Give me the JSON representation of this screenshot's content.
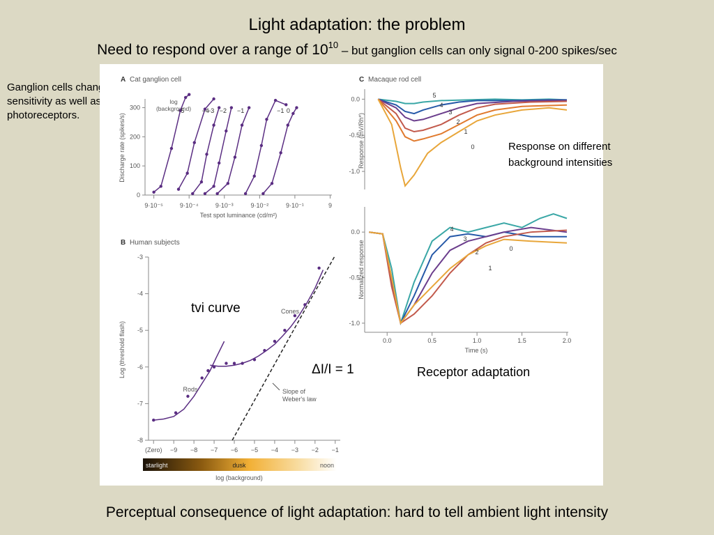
{
  "slide": {
    "title": "Light adaptation: the problem",
    "subtitle_main": "Need to respond over a range of 10",
    "subtitle_exp": "10",
    "subtitle_rest": " – but ganglion cells can only signal 0-200 spikes/sec",
    "side_note": "Ganglion cells change sensitivity as well as photoreceptors.",
    "footer": "Perceptual consequence of light adaptation: hard to tell ambient light intensity"
  },
  "annotations": {
    "tvi": "tvi curve",
    "weber": "ΔI/I = 1",
    "background": "Response on different background intensities",
    "receptor": "Receptor adaptation"
  },
  "colors": {
    "slide_bg": "#dcd9c4",
    "curve": "#5a2d82",
    "panel_bg": "#ffffff"
  },
  "chart_data": [
    {
      "panel": "A",
      "type": "line",
      "title": "Cat ganglion cell",
      "xlabel": "Test spot luminance (cd/m²)",
      "ylabel": "Discharge rate (spikes/s)",
      "x_scale": "log",
      "x_tick_labels": [
        "9·10⁻⁵",
        "9·10⁻⁴",
        "9·10⁻³",
        "9·10⁻²",
        "9·10⁻¹",
        "9"
      ],
      "x_tick_values": [
        -4.05,
        -3.05,
        -2.05,
        -1.05,
        -0.05,
        0.95
      ],
      "y_ticks": [
        0,
        100,
        200,
        300
      ],
      "ylim": [
        0,
        330
      ],
      "legend_title": "log (background)",
      "series": [
        {
          "name": "−5",
          "x": [
            -4.05,
            -3.85,
            -3.55,
            -3.3,
            -3.15,
            -3.05
          ],
          "y": [
            10,
            30,
            160,
            290,
            335,
            345
          ]
        },
        {
          "name": "−4",
          "x": [
            -3.35,
            -3.1,
            -2.9,
            -2.6,
            -2.35
          ],
          "y": [
            20,
            75,
            180,
            295,
            330
          ]
        },
        {
          "name": "−3",
          "x": [
            -2.95,
            -2.7,
            -2.55,
            -2.35,
            -2.2
          ],
          "y": [
            5,
            45,
            140,
            240,
            300
          ]
        },
        {
          "name": "−2",
          "x": [
            -2.6,
            -2.35,
            -2.2,
            -2.0,
            -1.85
          ],
          "y": [
            5,
            30,
            110,
            220,
            300
          ]
        },
        {
          "name": "−1",
          "x": [
            -2.25,
            -1.95,
            -1.75,
            -1.55,
            -1.35
          ],
          "y": [
            5,
            40,
            130,
            240,
            300
          ]
        },
        {
          "name": "−1",
          "x": [
            -1.45,
            -1.2,
            -1.0,
            -0.85,
            -0.6,
            -0.3
          ],
          "y": [
            5,
            65,
            170,
            260,
            325,
            310
          ]
        },
        {
          "name": "0",
          "x": [
            -0.95,
            -0.7,
            -0.45,
            -0.25,
            -0.1,
            0.0
          ],
          "y": [
            5,
            40,
            145,
            240,
            280,
            300
          ]
        }
      ]
    },
    {
      "panel": "B",
      "type": "line",
      "title": "Human subjects",
      "xlabel": "log (background)",
      "ylabel": "Log (threshold flash)",
      "x_tick_labels": [
        "(Zero)",
        "−9",
        "−8",
        "−7",
        "−6",
        "−5",
        "−4",
        "−3",
        "−2",
        "−1"
      ],
      "x_tick_values": [
        -10,
        -9,
        -8,
        -7,
        -6,
        -5,
        -4,
        -3,
        -2,
        -1
      ],
      "y_ticks": [
        -3,
        -4,
        -5,
        -6,
        -7,
        -8
      ],
      "ylim": [
        -8,
        -3
      ],
      "labels": [
        "Rods",
        "Cones",
        "Slope of Weber's law"
      ],
      "gradient_labels": [
        "starlight",
        "dusk",
        "noon"
      ],
      "series": [
        {
          "name": "Rods",
          "x": [
            -10,
            -9.5,
            -9,
            -8.5,
            -8,
            -7.6,
            -7.2,
            -6.9,
            -6.5
          ],
          "y": [
            -7.45,
            -7.42,
            -7.35,
            -7.15,
            -6.8,
            -6.45,
            -6.1,
            -5.75,
            -5.3
          ]
        },
        {
          "name": "Cones",
          "x": [
            -7.2,
            -6.8,
            -6.4,
            -6.0,
            -5.6,
            -5.2,
            -4.8,
            -4.4,
            -4.0,
            -3.6,
            -3.2,
            -2.8,
            -2.4,
            -2.0,
            -1.6
          ],
          "y": [
            -5.95,
            -5.98,
            -5.98,
            -5.95,
            -5.9,
            -5.82,
            -5.7,
            -5.55,
            -5.38,
            -5.15,
            -4.9,
            -4.6,
            -4.25,
            -3.85,
            -3.35
          ]
        },
        {
          "name": "Slope of Weber's law",
          "x": [
            -6.1,
            -1.0
          ],
          "y": [
            -8.0,
            -2.95
          ]
        }
      ],
      "points": {
        "x": [
          -10,
          -8.9,
          -8.3,
          -7.6,
          -7.3,
          -7.0,
          -6.4,
          -6.0,
          -5.6,
          -5.0,
          -4.5,
          -4.0,
          -3.5,
          -3.0,
          -2.5,
          -1.8
        ],
        "y": [
          -7.45,
          -7.25,
          -6.8,
          -6.3,
          -6.1,
          -6.0,
          -5.9,
          -5.9,
          -5.9,
          -5.8,
          -5.55,
          -5.3,
          -5.0,
          -4.6,
          -4.3,
          -3.3
        ]
      }
    },
    {
      "panel": "C",
      "type": "line",
      "title": "Macaque rod cell",
      "ylabel": "Response (mV/Rh*)",
      "xlim": [
        -0.25,
        2.0
      ],
      "y_ticks": [
        0.0,
        -0.5,
        -1.0
      ],
      "ylim": [
        -1.25,
        0.1
      ],
      "series": [
        {
          "name": "5",
          "color": "#3aa7a6",
          "x": [
            -0.1,
            0.1,
            0.2,
            0.3,
            0.4,
            0.6,
            0.9,
            1.2,
            1.5,
            1.8,
            2.0
          ],
          "y": [
            0,
            -0.03,
            -0.06,
            -0.06,
            -0.04,
            -0.02,
            -0.01,
            0,
            -0.01,
            0,
            -0.01
          ]
        },
        {
          "name": "4",
          "color": "#2659a8",
          "x": [
            -0.1,
            0.1,
            0.2,
            0.3,
            0.4,
            0.6,
            0.8,
            1.0,
            1.4,
            1.8,
            2.0
          ],
          "y": [
            0,
            -0.08,
            -0.17,
            -0.2,
            -0.15,
            -0.08,
            -0.04,
            -0.02,
            -0.02,
            -0.01,
            -0.01
          ]
        },
        {
          "name": "3",
          "color": "#6b3d8c",
          "x": [
            -0.1,
            0.1,
            0.2,
            0.3,
            0.4,
            0.6,
            0.8,
            1.0,
            1.4,
            1.8,
            2.0
          ],
          "y": [
            0,
            -0.12,
            -0.25,
            -0.3,
            -0.28,
            -0.2,
            -0.12,
            -0.06,
            -0.03,
            -0.02,
            -0.02
          ]
        },
        {
          "name": "2",
          "color": "#c25a4c",
          "x": [
            -0.1,
            0.1,
            0.2,
            0.3,
            0.4,
            0.6,
            0.8,
            1.0,
            1.2,
            1.6,
            2.0
          ],
          "y": [
            0,
            -0.2,
            -0.4,
            -0.45,
            -0.43,
            -0.35,
            -0.22,
            -0.12,
            -0.07,
            -0.04,
            -0.03
          ]
        },
        {
          "name": "1",
          "color": "#e07a2e",
          "x": [
            -0.1,
            0.1,
            0.2,
            0.3,
            0.4,
            0.6,
            0.8,
            1.0,
            1.2,
            1.5,
            2.0
          ],
          "y": [
            0,
            -0.3,
            -0.52,
            -0.58,
            -0.55,
            -0.48,
            -0.35,
            -0.22,
            -0.15,
            -0.1,
            -0.08
          ]
        },
        {
          "name": "0",
          "color": "#e8a63a",
          "x": [
            -0.1,
            0.05,
            0.15,
            0.2,
            0.3,
            0.45,
            0.6,
            0.8,
            1.0,
            1.2,
            1.5,
            1.8,
            2.0
          ],
          "y": [
            0,
            -0.35,
            -0.95,
            -1.2,
            -1.05,
            -0.75,
            -0.6,
            -0.45,
            -0.3,
            -0.22,
            -0.15,
            -0.12,
            -0.15
          ]
        }
      ]
    },
    {
      "panel": "C2",
      "type": "line",
      "xlabel": "Time (s)",
      "ylabel": "Normalized response",
      "x_ticks": [
        0.0,
        0.5,
        1.0,
        1.5,
        2.0
      ],
      "xlim": [
        -0.25,
        2.0
      ],
      "y_ticks": [
        0.0,
        -0.5,
        -1.0
      ],
      "ylim": [
        -1.1,
        0.2
      ],
      "series": [
        {
          "name": "4",
          "color": "#3aa7a6",
          "x": [
            -0.2,
            -0.05,
            0.05,
            0.15,
            0.3,
            0.5,
            0.7,
            0.9,
            1.1,
            1.3,
            1.5,
            1.7,
            1.85,
            2.0
          ],
          "y": [
            0.0,
            -0.02,
            -0.4,
            -1.0,
            -0.55,
            -0.1,
            0.05,
            0.0,
            0.05,
            0.1,
            0.05,
            0.15,
            0.2,
            0.15
          ]
        },
        {
          "name": "3",
          "color": "#2659a8",
          "x": [
            -0.2,
            -0.05,
            0.05,
            0.15,
            0.3,
            0.5,
            0.7,
            0.9,
            1.1,
            1.3,
            1.6,
            2.0
          ],
          "y": [
            0.0,
            -0.02,
            -0.5,
            -1.0,
            -0.7,
            -0.25,
            -0.05,
            -0.02,
            -0.05,
            0.0,
            -0.05,
            -0.05
          ]
        },
        {
          "name": "2",
          "color": "#6b3d8c",
          "x": [
            -0.2,
            -0.05,
            0.05,
            0.15,
            0.3,
            0.5,
            0.7,
            0.9,
            1.1,
            1.3,
            1.6,
            2.0
          ],
          "y": [
            0.0,
            -0.02,
            -0.55,
            -1.0,
            -0.8,
            -0.45,
            -0.2,
            -0.1,
            -0.05,
            0.0,
            0.05,
            0.0
          ]
        },
        {
          "name": "1",
          "color": "#c25a4c",
          "x": [
            -0.2,
            -0.05,
            0.05,
            0.15,
            0.3,
            0.5,
            0.7,
            0.9,
            1.1,
            1.3,
            1.6,
            2.0
          ],
          "y": [
            0.0,
            -0.02,
            -0.6,
            -1.0,
            -0.9,
            -0.7,
            -0.45,
            -0.25,
            -0.12,
            -0.05,
            0.0,
            0.02
          ]
        },
        {
          "name": "0",
          "color": "#e8a63a",
          "x": [
            -0.2,
            -0.05,
            0.05,
            0.15,
            0.3,
            0.5,
            0.7,
            0.9,
            1.1,
            1.3,
            1.6,
            2.0
          ],
          "y": [
            0.0,
            -0.02,
            -0.5,
            -1.0,
            -0.8,
            -0.6,
            -0.4,
            -0.25,
            -0.15,
            -0.08,
            -0.1,
            -0.12
          ]
        }
      ]
    }
  ]
}
